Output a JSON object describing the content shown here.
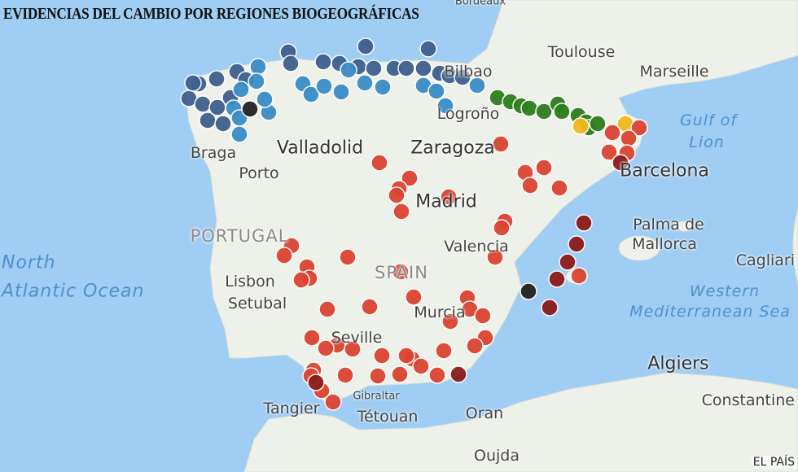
{
  "title": "EVIDENCIAS DEL CAMBIO POR REGIONES BIOGEOGRÁFICAS",
  "credit": "EL PAÍS",
  "colors": {
    "sea": "#9fcdf3",
    "land": "#eef1e9",
    "dark_blue": "#3f5f8e",
    "light_blue": "#3a8dc6",
    "green": "#2f7d1e",
    "yellow": "#f2b91b",
    "black": "#222222",
    "red": "#dc4432",
    "dark_red": "#8c1c1c"
  },
  "places": {
    "bordeaux": "Bordeaux",
    "toulouse": "Toulouse",
    "marseille": "Marseille",
    "gulf1": "Gulf of",
    "gulf2": "Lion",
    "bilbao": "Bilbao",
    "logrono": "Logroño",
    "braga": "Braga",
    "porto": "Porto",
    "valladolid": "Valladolid",
    "zaragoza": "Zaragoza",
    "barcelona": "Barcelona",
    "madrid": "Madrid",
    "portugal": "PORTUGAL",
    "spain": "SPAIN",
    "palma1": "Palma de",
    "palma2": "Mallorca",
    "valencia": "Valencia",
    "lisbon": "Lisbon",
    "setubal": "Setubal",
    "atl1": "North",
    "atl2": "Atlantic Ocean",
    "med1": "Western",
    "med2": "Mediterranean Sea",
    "murcia": "Murcia",
    "seville": "Seville",
    "algiers": "Algiers",
    "gibraltar": "Gibraltar",
    "tangier": "Tangier",
    "tetouan": "Tétouan",
    "oran": "Oran",
    "oujda": "Oujda",
    "constantine": "Constantine",
    "cagliari": "Cagliari"
  }
}
